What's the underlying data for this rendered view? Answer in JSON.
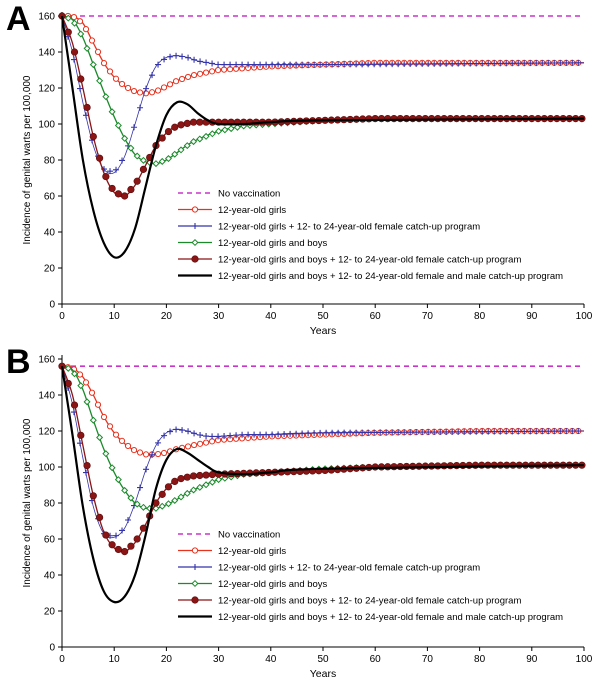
{
  "panels": [
    {
      "letter": "A"
    },
    {
      "letter": "B"
    }
  ],
  "colors": {
    "no_vaccination": "#cc33cc",
    "girls": "#e8321e",
    "girls_catchup": "#3333aa",
    "girls_boys": "#1a8a2a",
    "girls_boys_female_catchup": "#8b1414",
    "girls_boys_both_catchup": "#000000"
  },
  "chart_data": [
    {
      "type": "line",
      "panel": "A",
      "title": "",
      "xlabel": "Years",
      "ylabel": "Incidence of genital warts per 100,000",
      "xlim": [
        0,
        100
      ],
      "ylim": [
        0,
        160
      ],
      "xticks": [
        0,
        10,
        20,
        30,
        40,
        50,
        60,
        70,
        80,
        90,
        100
      ],
      "yticks": [
        0,
        20,
        40,
        60,
        80,
        100,
        120,
        140,
        160
      ],
      "legend_position": "bottom-right",
      "series": [
        {
          "name": "No vaccination",
          "style": "dashed",
          "marker": "none",
          "x": [
            0,
            100
          ],
          "y": [
            160,
            160
          ]
        },
        {
          "name": "12-year-old girls",
          "style": "solid",
          "marker": "open-circle",
          "x": [
            0,
            2,
            4,
            6,
            8,
            10,
            12,
            14,
            16,
            18,
            20,
            22,
            25,
            30,
            40,
            50,
            60,
            80,
            100
          ],
          "y": [
            160,
            160,
            156,
            145,
            134,
            126,
            121,
            118,
            117,
            118,
            121,
            124,
            127,
            130,
            132,
            133,
            134,
            134,
            134
          ]
        },
        {
          "name": "12-year-old girls + 12- to 24-year-old female catch-up program",
          "style": "solid",
          "marker": "plus",
          "x": [
            0,
            2,
            4,
            6,
            8,
            10,
            12,
            14,
            16,
            18,
            20,
            22,
            24,
            26,
            28,
            30,
            35,
            40,
            50,
            100
          ],
          "y": [
            160,
            140,
            112,
            88,
            75,
            73,
            82,
            100,
            119,
            132,
            137,
            138,
            137,
            135,
            134,
            133,
            133,
            133,
            133,
            134
          ]
        },
        {
          "name": "12-year-old girls and boys",
          "style": "solid",
          "marker": "open-diamond",
          "x": [
            0,
            2,
            4,
            6,
            8,
            10,
            12,
            14,
            16,
            18,
            20,
            22,
            25,
            30,
            35,
            40,
            50,
            60,
            80,
            100
          ],
          "y": [
            160,
            158,
            148,
            133,
            118,
            104,
            92,
            83,
            79,
            78,
            80,
            84,
            90,
            96,
            99,
            100,
            102,
            103,
            103,
            103
          ]
        },
        {
          "name": "12-year-old girls and boys + 12- to 24-year-old female catch-up program",
          "style": "solid",
          "marker": "filled-circle",
          "x": [
            0,
            2,
            4,
            6,
            8,
            10,
            12,
            14,
            16,
            18,
            20,
            22,
            25,
            30,
            40,
            50,
            60,
            80,
            100
          ],
          "y": [
            160,
            145,
            120,
            93,
            73,
            62,
            60,
            66,
            77,
            88,
            95,
            99,
            101,
            101,
            101,
            102,
            103,
            103,
            103
          ]
        },
        {
          "name": "12-year-old girls and boys + 12- to 24-year-old female and male catch-up program",
          "style": "solid",
          "marker": "none",
          "x": [
            0,
            2,
            4,
            6,
            8,
            10,
            12,
            14,
            16,
            18,
            20,
            22,
            24,
            26,
            28,
            30,
            35,
            40,
            50,
            100
          ],
          "y": [
            160,
            120,
            80,
            52,
            34,
            26,
            29,
            42,
            65,
            88,
            105,
            112,
            111,
            106,
            102,
            100,
            100,
            101,
            102,
            103
          ]
        }
      ]
    },
    {
      "type": "line",
      "panel": "B",
      "title": "",
      "xlabel": "Years",
      "ylabel": "Incidence of genital warts per 100,000",
      "xlim": [
        0,
        100
      ],
      "ylim": [
        0,
        160
      ],
      "xticks": [
        0,
        10,
        20,
        30,
        40,
        50,
        60,
        70,
        80,
        90,
        100
      ],
      "yticks": [
        0,
        20,
        40,
        60,
        80,
        100,
        120,
        140,
        160
      ],
      "legend_position": "bottom-right",
      "series": [
        {
          "name": "No vaccination",
          "style": "dashed",
          "marker": "none",
          "x": [
            0,
            100
          ],
          "y": [
            156,
            156
          ]
        },
        {
          "name": "12-year-old girls",
          "style": "solid",
          "marker": "open-circle",
          "x": [
            0,
            2,
            4,
            6,
            8,
            10,
            12,
            14,
            16,
            18,
            20,
            22,
            25,
            30,
            40,
            50,
            60,
            80,
            100
          ],
          "y": [
            156,
            155,
            150,
            140,
            128,
            119,
            113,
            109,
            107,
            107,
            108,
            110,
            112,
            115,
            117,
            118,
            119,
            120,
            120
          ]
        },
        {
          "name": "12-year-old girls + 12- to 24-year-old female catch-up program",
          "style": "solid",
          "marker": "plus",
          "x": [
            0,
            2,
            4,
            6,
            8,
            10,
            12,
            14,
            16,
            18,
            20,
            22,
            24,
            26,
            28,
            30,
            35,
            40,
            50,
            100
          ],
          "y": [
            156,
            135,
            105,
            78,
            63,
            61,
            66,
            80,
            98,
            112,
            119,
            121,
            120,
            118,
            117,
            117,
            118,
            118,
            119,
            120
          ]
        },
        {
          "name": "12-year-old girls and boys",
          "style": "solid",
          "marker": "open-diamond",
          "x": [
            0,
            2,
            4,
            6,
            8,
            10,
            12,
            14,
            16,
            18,
            20,
            22,
            25,
            30,
            35,
            40,
            50,
            60,
            80,
            100
          ],
          "y": [
            156,
            154,
            143,
            126,
            110,
            97,
            87,
            80,
            77,
            77,
            79,
            82,
            87,
            93,
            96,
            97,
            99,
            100,
            101,
            101
          ]
        },
        {
          "name": "12-year-old girls and boys + 12- to 24-year-old female catch-up program",
          "style": "solid",
          "marker": "filled-circle",
          "x": [
            0,
            2,
            4,
            6,
            8,
            10,
            12,
            14,
            16,
            18,
            20,
            22,
            25,
            30,
            40,
            50,
            60,
            80,
            100
          ],
          "y": [
            156,
            140,
            112,
            84,
            64,
            55,
            53,
            58,
            68,
            80,
            88,
            93,
            95,
            96,
            97,
            98,
            100,
            101,
            101
          ]
        },
        {
          "name": "12-year-old girls and boys + 12- to 24-year-old female and male catch-up program",
          "style": "solid",
          "marker": "none",
          "x": [
            0,
            2,
            4,
            6,
            8,
            10,
            12,
            14,
            16,
            18,
            20,
            22,
            24,
            26,
            28,
            30,
            35,
            40,
            50,
            100
          ],
          "y": [
            156,
            118,
            78,
            49,
            31,
            25,
            28,
            40,
            62,
            88,
            104,
            110,
            108,
            104,
            100,
            97,
            96,
            97,
            99,
            101
          ]
        }
      ]
    }
  ]
}
